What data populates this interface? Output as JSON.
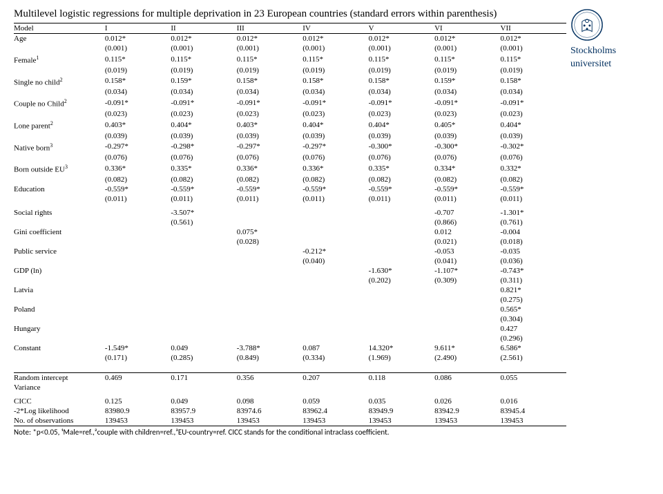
{
  "title": "Multilevel logistic regressions for multiple deprivation in 23 European countries (standard errors within parenthesis)",
  "logo": {
    "line1": "Stockholms",
    "line2": "universitet",
    "color": "#002f5f"
  },
  "columns": [
    "Model",
    "I",
    "II",
    "III",
    "IV",
    "V",
    "VI",
    "VII"
  ],
  "vars": [
    {
      "label": "Age",
      "sup": "",
      "v": [
        "0.012*",
        "0.012*",
        "0.012*",
        "0.012*",
        "0.012*",
        "0.012*",
        "0.012*"
      ],
      "se": [
        "(0.001)",
        "(0.001)",
        "(0.001)",
        "(0.001)",
        "(0.001)",
        "(0.001)",
        "(0.001)"
      ]
    },
    {
      "label": "Female",
      "sup": "1",
      "v": [
        "0.115*",
        "0.115*",
        "0.115*",
        "0.115*",
        "0.115*",
        "0.115*",
        "0.115*"
      ],
      "se": [
        "(0.019)",
        "(0.019)",
        "(0.019)",
        "(0.019)",
        "(0.019)",
        "(0.019)",
        "(0.019)"
      ]
    },
    {
      "label": "Single no child",
      "sup": "2",
      "v": [
        "0.158*",
        "0.159*",
        "0.158*",
        "0.158*",
        "0.158*",
        "0.159*",
        "0.158*"
      ],
      "se": [
        "(0.034)",
        "(0.034)",
        "(0.034)",
        "(0.034)",
        "(0.034)",
        "(0.034)",
        "(0.034)"
      ]
    },
    {
      "label": "Couple no Child",
      "sup": "2",
      "v": [
        "-0.091*",
        "-0.091*",
        "-0.091*",
        "-0.091*",
        "-0.091*",
        "-0.091*",
        "-0.091*"
      ],
      "se": [
        "(0.023)",
        "(0.023)",
        "(0.023)",
        "(0.023)",
        "(0.023)",
        "(0.023)",
        "(0.023)"
      ]
    },
    {
      "label": "Lone parent",
      "sup": "2",
      "v": [
        "0.403*",
        "0.404*",
        "0.403*",
        "0.404*",
        "0.404*",
        "0.405*",
        "0.404*"
      ],
      "se": [
        "(0.039)",
        "(0.039)",
        "(0.039)",
        "(0.039)",
        "(0.039)",
        "(0.039)",
        "(0.039)"
      ]
    },
    {
      "label": "Native born",
      "sup": "3",
      "v": [
        "-0.297*",
        "-0.298*",
        "-0.297*",
        "-0.297*",
        "-0.300*",
        "-0.300*",
        "-0.302*"
      ],
      "se": [
        "(0.076)",
        "(0.076)",
        "(0.076)",
        "(0.076)",
        "(0.076)",
        "(0.076)",
        "(0.076)"
      ]
    },
    {
      "label": "Born outside EU",
      "sup": "3",
      "v": [
        "0.336*",
        "0.335*",
        "0.336*",
        "0.336*",
        "0.335*",
        "0.334*",
        "0.332*"
      ],
      "se": [
        "(0.082)",
        "(0.082)",
        "(0.082)",
        "(0.082)",
        "(0.082)",
        "(0.082)",
        "(0.082)"
      ]
    },
    {
      "label": "Education",
      "sup": "",
      "v": [
        "-0.559*",
        "-0.559*",
        "-0.559*",
        "-0.559*",
        "-0.559*",
        "-0.559*",
        "-0.559*"
      ],
      "se": [
        "(0.011)",
        "(0.011)",
        "(0.011)",
        "(0.011)",
        "(0.011)",
        "(0.011)",
        "(0.011)"
      ]
    }
  ],
  "block2": [
    {
      "label": "Social rights",
      "v": [
        "",
        "-3.507*",
        "",
        "",
        "",
        "-0.707",
        "-1.301*"
      ],
      "se": [
        "",
        "(0.561)",
        "",
        "",
        "",
        "(0.866)",
        "(0.761)"
      ]
    },
    {
      "label": "Gini coefficient",
      "v": [
        "",
        "",
        "0.075*",
        "",
        "",
        "0.012",
        "-0.004"
      ],
      "se": [
        "",
        "",
        "(0.028)",
        "",
        "",
        "(0.021)",
        "(0.018)"
      ]
    },
    {
      "label": "Public service",
      "v": [
        "",
        "",
        "",
        "-0.212*",
        "",
        "-0.053",
        "-0.035"
      ],
      "se": [
        "",
        "",
        "",
        "(0.040)",
        "",
        "(0.041)",
        "(0.036)"
      ]
    },
    {
      "label": "GDP (ln)",
      "v": [
        "",
        "",
        "",
        "",
        "-1.630*",
        "-1.107*",
        "-0.743*"
      ],
      "se": [
        "",
        "",
        "",
        "",
        "(0.202)",
        "(0.309)",
        "(0.311)"
      ]
    },
    {
      "label": "Latvia",
      "v": [
        "",
        "",
        "",
        "",
        "",
        "",
        "0.821*"
      ],
      "se": [
        "",
        "",
        "",
        "",
        "",
        "",
        "(0.275)"
      ]
    },
    {
      "label": "Poland",
      "v": [
        "",
        "",
        "",
        "",
        "",
        "",
        "0.565*"
      ],
      "se": [
        "",
        "",
        "",
        "",
        "",
        "",
        "(0.304)"
      ]
    },
    {
      "label": "Hungary",
      "v": [
        "",
        "",
        "",
        "",
        "",
        "",
        "0.427"
      ],
      "se": [
        "",
        "",
        "",
        "",
        "",
        "",
        "(0.296)"
      ]
    },
    {
      "label": "Constant",
      "v": [
        "-1.549*",
        "0.049",
        "-3.788*",
        "0.087",
        "14.320*",
        "9.611*",
        "6.586*"
      ],
      "se": [
        "(0.171)",
        "(0.285)",
        "(0.849)",
        "(0.334)",
        "(1.969)",
        "(2.490)",
        "(2.561)"
      ]
    }
  ],
  "block3": [
    {
      "label": "Random intercept",
      "v": [
        "0.469",
        "0.171",
        "0.356",
        "0.207",
        "0.118",
        "0.086",
        "0.055"
      ]
    },
    {
      "label": "Variance",
      "v": [
        "",
        "",
        "",
        "",
        "",
        "",
        ""
      ]
    }
  ],
  "block4": [
    {
      "label": "CICC",
      "v": [
        "0.125",
        "0.049",
        "0.098",
        "0.059",
        "0.035",
        "0.026",
        "0.016"
      ]
    },
    {
      "label": "-2*Log likelihood",
      "v": [
        "83980.9",
        "83957.9",
        "83974.6",
        "83962.4",
        "83949.9",
        "83942.9",
        "83945.4"
      ]
    },
    {
      "label": "No. of observations",
      "v": [
        "139453",
        "139453",
        "139453",
        "139453",
        "139453",
        "139453",
        "139453"
      ]
    }
  ],
  "footnote": "Note: *p<0.05, ¹Male=ref.,²couple with children=ref.,³EU-country=ref. CICC stands for the conditional intraclass coefficient."
}
